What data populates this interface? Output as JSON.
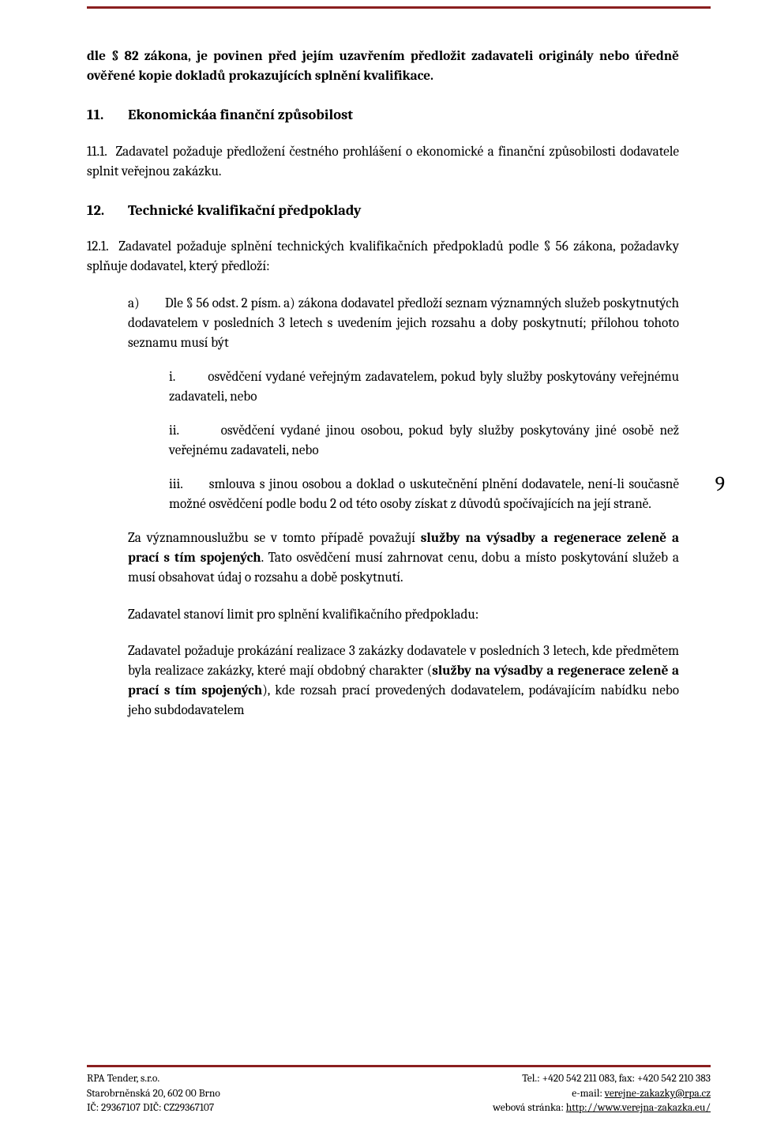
{
  "colors": {
    "rule": "#8a1f1f",
    "text": "#000000",
    "background": "#ffffff"
  },
  "typography": {
    "body_font": "Cambria/Georgia serif",
    "body_size_pt": 13,
    "heading_size_pt": 14,
    "footer_size_pt": 10,
    "line_height": 1.45
  },
  "page_number": "9",
  "intro_para": "dle § 82 zákona, je povinen před jejím uzavřením předložit zadavateli originály nebo úředně ověřené kopie dokladů prokazujících splnění kvalifikace.",
  "section11": {
    "num": "11.",
    "title": "Ekonomickáa finanční způsobilost",
    "p1_label": "11.1.",
    "p1_text": "Zadavatel požaduje předložení čestného prohlášení o ekonomické a finanční způsobilosti dodavatele splnit veřejnou zakázku."
  },
  "section12": {
    "num": "12.",
    "title": "Technické kvalifikační předpoklady",
    "p1_label": "12.1.",
    "p1_text": "Zadavatel požaduje splnění technických kvalifikačních předpokladů podle § 56 zákona, požadavky splňuje dodavatel, který předloží:",
    "a_label": "a)",
    "a_text": "Dle § 56 odst. 2 písm. a) zákona dodavatel předloží seznam významných služeb poskytnutých dodavatelem v posledních 3 letech s uvedením jejich rozsahu a doby poskytnutí; přílohou tohoto seznamu musí být",
    "i_label": "i.",
    "i_text": "osvědčení vydané veřejným zadavatelem, pokud byly služby poskytovány veřejnému zadavateli, nebo",
    "ii_label": "ii.",
    "ii_text": "osvědčení vydané jinou osobou, pokud byly služby poskytovány jiné osobě než veřejnému zadavateli, nebo",
    "iii_label": "iii.",
    "iii_text": "smlouva s jinou osobou a doklad o uskutečnění plnění dodavatele, není-li současně možné osvědčení podle bodu 2 od této osoby získat z důvodů spočívajících na její straně.",
    "za_pre": "Za významnouslužbu se v tomto případě považují ",
    "za_bold": "služby na výsadby a regenerace zeleně a prací s tím spojených",
    "za_post": ". Tato osvědčení musí zahrnovat cenu, dobu a místo poskytování služeb a musí obsahovat údaj o rozsahu a době poskytnutí.",
    "limit": "Zadavatel stanoví limit pro splnění kvalifikačního předpokladu:",
    "req_pre": "Zadavatel požaduje prokázání realizace 3 zakázky dodavatele v posledních 3 letech, kde předmětem byla realizace zakázky, které mají obdobný charakter (",
    "req_bold": "služby na výsadby a regenerace zeleně a prací s tím spojených",
    "req_post": "), kde rozsah prací provedených dodavatelem, podávajícím nabídku nebo jeho subdodavatelem"
  },
  "footer": {
    "left1": "RPA Tender, s.r.o.",
    "left2": "Starobrněnská 20, 602 00 Brno",
    "left3": "IČ: 29367107 DIČ: CZ29367107",
    "right1": "Tel.: +420 542 211 083, fax: +420 542 210 383",
    "right2_pre": "e-mail: ",
    "right2_link": "verejne-zakazky@rpa.cz",
    "right3_pre": "webová stránka: ",
    "right3_link": "http://www.verejna-zakazka.eu/"
  }
}
